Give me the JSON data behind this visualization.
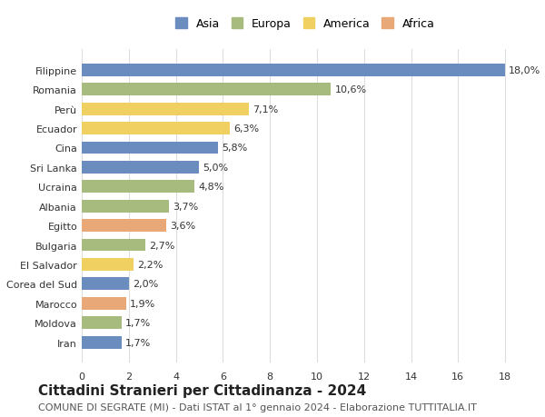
{
  "categories": [
    "Iran",
    "Moldova",
    "Marocco",
    "Corea del Sud",
    "El Salvador",
    "Bulgaria",
    "Egitto",
    "Albania",
    "Ucraina",
    "Sri Lanka",
    "Cina",
    "Ecuador",
    "Perù",
    "Romania",
    "Filippine"
  ],
  "values": [
    1.7,
    1.7,
    1.9,
    2.0,
    2.2,
    2.7,
    3.6,
    3.7,
    4.8,
    5.0,
    5.8,
    6.3,
    7.1,
    10.6,
    18.0
  ],
  "labels": [
    "1,7%",
    "1,7%",
    "1,9%",
    "2,0%",
    "2,2%",
    "2,7%",
    "3,6%",
    "3,7%",
    "4,8%",
    "5,0%",
    "5,8%",
    "6,3%",
    "7,1%",
    "10,6%",
    "18,0%"
  ],
  "continents": [
    "Asia",
    "Europa",
    "Africa",
    "Asia",
    "America",
    "Europa",
    "Africa",
    "Europa",
    "Europa",
    "Asia",
    "Asia",
    "America",
    "America",
    "Europa",
    "Asia"
  ],
  "continent_colors": {
    "Asia": "#6b8cbf",
    "Europa": "#a8bb7e",
    "America": "#f0d060",
    "Africa": "#e8a878"
  },
  "legend_order": [
    "Asia",
    "Europa",
    "America",
    "Africa"
  ],
  "title": "Cittadini Stranieri per Cittadinanza - 2024",
  "subtitle": "COMUNE DI SEGRATE (MI) - Dati ISTAT al 1° gennaio 2024 - Elaborazione TUTTITALIA.IT",
  "xlim": [
    0,
    19
  ],
  "xticks": [
    0,
    2,
    4,
    6,
    8,
    10,
    12,
    14,
    16,
    18
  ],
  "background_color": "#ffffff",
  "grid_color": "#dddddd",
  "bar_height": 0.65,
  "title_fontsize": 11,
  "subtitle_fontsize": 8,
  "label_fontsize": 8,
  "tick_fontsize": 8,
  "legend_fontsize": 9
}
